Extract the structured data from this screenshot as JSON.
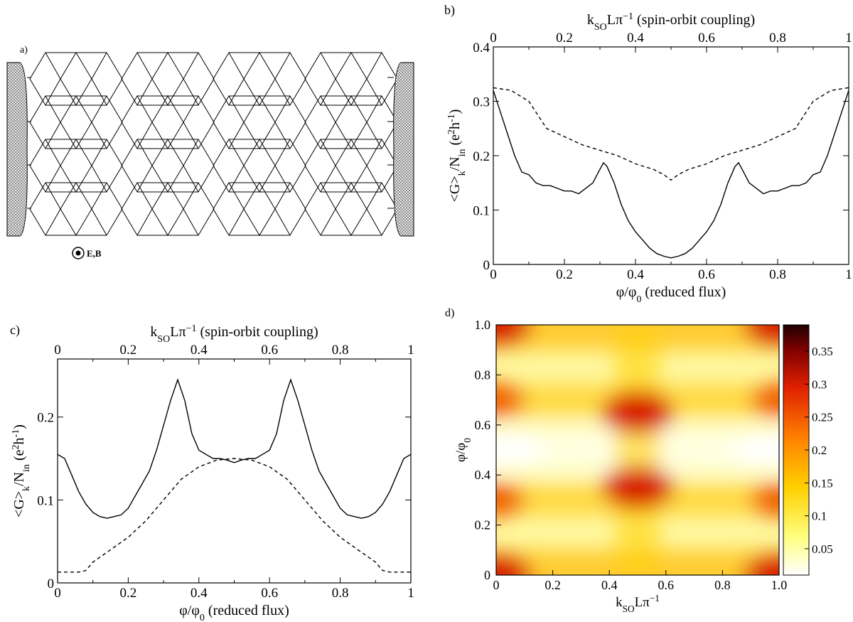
{
  "panel_labels": {
    "a": "a)",
    "b": "b)",
    "c": "c)",
    "d": "d)"
  },
  "panel_a": {
    "field_label": "E,B"
  },
  "chart_data": [
    {
      "panel": "b",
      "type": "line",
      "xlabel": "φ/φ",
      "xlabel_sub": "0",
      "xlabel_suffix": " (reduced flux)",
      "x2label": "k",
      "x2label_sub": "SO",
      "x2label_rest": "Lπ",
      "x2label_sup": "−1",
      "x2label_suffix": " (spin-orbit coupling)",
      "ylabel": "<G>k/Nin (e2h-1)",
      "xlim": [
        0,
        1
      ],
      "ylim": [
        0,
        0.4
      ],
      "xticks": [
        "0",
        "0.2",
        "0.4",
        "0.6",
        "0.8",
        "1"
      ],
      "yticks": [
        "0",
        "0.1",
        "0.2",
        "0.3",
        "0.4"
      ],
      "series": [
        {
          "style": "solid",
          "x": [
            0,
            0.02,
            0.04,
            0.06,
            0.08,
            0.1,
            0.12,
            0.14,
            0.16,
            0.18,
            0.2,
            0.22,
            0.24,
            0.26,
            0.28,
            0.3,
            0.31,
            0.32,
            0.34,
            0.36,
            0.38,
            0.4,
            0.42,
            0.44,
            0.46,
            0.48,
            0.5,
            0.52,
            0.54,
            0.56,
            0.58,
            0.6,
            0.62,
            0.64,
            0.66,
            0.68,
            0.69,
            0.7,
            0.72,
            0.74,
            0.76,
            0.78,
            0.8,
            0.82,
            0.84,
            0.86,
            0.88,
            0.9,
            0.92,
            0.94,
            0.96,
            0.98,
            1.0
          ],
          "y": [
            0.32,
            0.28,
            0.24,
            0.2,
            0.17,
            0.165,
            0.15,
            0.145,
            0.145,
            0.14,
            0.135,
            0.135,
            0.13,
            0.14,
            0.15,
            0.175,
            0.187,
            0.18,
            0.15,
            0.11,
            0.08,
            0.06,
            0.045,
            0.03,
            0.02,
            0.015,
            0.012,
            0.015,
            0.02,
            0.03,
            0.045,
            0.06,
            0.08,
            0.11,
            0.15,
            0.18,
            0.187,
            0.175,
            0.15,
            0.14,
            0.13,
            0.135,
            0.135,
            0.14,
            0.145,
            0.145,
            0.15,
            0.165,
            0.17,
            0.2,
            0.24,
            0.28,
            0.32
          ]
        },
        {
          "style": "dashed",
          "x": [
            0,
            0.05,
            0.1,
            0.15,
            0.2,
            0.25,
            0.3,
            0.35,
            0.4,
            0.45,
            0.48,
            0.5,
            0.52,
            0.55,
            0.6,
            0.65,
            0.7,
            0.75,
            0.8,
            0.85,
            0.9,
            0.95,
            1.0
          ],
          "y": [
            0.325,
            0.32,
            0.3,
            0.25,
            0.235,
            0.22,
            0.21,
            0.2,
            0.185,
            0.175,
            0.165,
            0.155,
            0.165,
            0.175,
            0.185,
            0.2,
            0.21,
            0.22,
            0.235,
            0.25,
            0.3,
            0.32,
            0.325
          ]
        }
      ]
    },
    {
      "panel": "c",
      "type": "line",
      "xlabel": "φ/φ",
      "xlabel_sub": "0",
      "xlabel_suffix": " (reduced flux)",
      "x2label": "k",
      "x2label_sub": "SO",
      "x2label_rest": "Lπ",
      "x2label_sup": "−1",
      "x2label_suffix": " (spin-orbit coupling)",
      "ylabel": "<G>k/Nin (e2h-1)",
      "xlim": [
        0,
        1
      ],
      "ylim": [
        0,
        0.27
      ],
      "xticks": [
        "0",
        "0.2",
        "0.4",
        "0.6",
        "0.8",
        "1"
      ],
      "yticks": [
        "0",
        "0.1",
        "0.2"
      ],
      "series": [
        {
          "style": "solid",
          "x": [
            0,
            0.02,
            0.04,
            0.06,
            0.08,
            0.1,
            0.12,
            0.14,
            0.16,
            0.18,
            0.2,
            0.22,
            0.24,
            0.26,
            0.28,
            0.3,
            0.32,
            0.34,
            0.36,
            0.38,
            0.4,
            0.42,
            0.44,
            0.46,
            0.48,
            0.5,
            0.52,
            0.54,
            0.56,
            0.58,
            0.6,
            0.62,
            0.64,
            0.66,
            0.68,
            0.7,
            0.72,
            0.74,
            0.76,
            0.78,
            0.8,
            0.82,
            0.84,
            0.86,
            0.88,
            0.9,
            0.92,
            0.94,
            0.96,
            0.98,
            1.0
          ],
          "y": [
            0.155,
            0.15,
            0.13,
            0.11,
            0.095,
            0.085,
            0.08,
            0.078,
            0.08,
            0.082,
            0.09,
            0.105,
            0.12,
            0.135,
            0.16,
            0.19,
            0.22,
            0.245,
            0.22,
            0.18,
            0.16,
            0.155,
            0.15,
            0.15,
            0.148,
            0.145,
            0.148,
            0.15,
            0.15,
            0.155,
            0.16,
            0.18,
            0.22,
            0.245,
            0.22,
            0.19,
            0.16,
            0.135,
            0.12,
            0.105,
            0.09,
            0.082,
            0.08,
            0.078,
            0.08,
            0.085,
            0.095,
            0.11,
            0.13,
            0.15,
            0.155
          ]
        },
        {
          "style": "dashed",
          "x": [
            0,
            0.06,
            0.08,
            0.1,
            0.15,
            0.2,
            0.25,
            0.3,
            0.35,
            0.4,
            0.45,
            0.5,
            0.55,
            0.6,
            0.65,
            0.7,
            0.75,
            0.8,
            0.85,
            0.9,
            0.92,
            0.94,
            1.0
          ],
          "y": [
            0.013,
            0.013,
            0.015,
            0.025,
            0.04,
            0.055,
            0.075,
            0.1,
            0.125,
            0.14,
            0.148,
            0.15,
            0.148,
            0.14,
            0.125,
            0.1,
            0.075,
            0.055,
            0.04,
            0.025,
            0.015,
            0.013,
            0.013
          ]
        }
      ]
    },
    {
      "panel": "d",
      "type": "heatmap",
      "xlabel": "k",
      "xlabel_sub": "SO",
      "xlabel_rest": "Lπ",
      "xlabel_sup": "−1",
      "ylabel": "φ/φ",
      "ylabel_sub": "0",
      "xlim": [
        0,
        1
      ],
      "ylim": [
        0,
        1
      ],
      "xticks": [
        "0",
        "0.2",
        "0.4",
        "0.6",
        "0.8",
        "1.0"
      ],
      "yticks": [
        "0",
        "0.2",
        "0.4",
        "0.6",
        "0.8",
        "1.0"
      ],
      "colorbar": {
        "ticks": [
          "0.05",
          "0.1",
          "0.15",
          "0.2",
          "0.25",
          "0.3",
          "0.35"
        ],
        "range": [
          0.01,
          0.39
        ]
      },
      "hotspots": [
        {
          "x": 0.5,
          "y": 0.35,
          "value": 0.3
        },
        {
          "x": 0.5,
          "y": 0.65,
          "value": 0.3
        },
        {
          "x": 0.0,
          "y": 0.0,
          "value": 0.3
        },
        {
          "x": 1.0,
          "y": 0.0,
          "value": 0.3
        },
        {
          "x": 0.0,
          "y": 1.0,
          "value": 0.3
        },
        {
          "x": 1.0,
          "y": 1.0,
          "value": 0.3
        },
        {
          "x": 0.0,
          "y": 0.3,
          "value": 0.22
        },
        {
          "x": 1.0,
          "y": 0.3,
          "value": 0.22
        },
        {
          "x": 0.0,
          "y": 0.7,
          "value": 0.22
        },
        {
          "x": 1.0,
          "y": 0.7,
          "value": 0.22
        }
      ],
      "colors": {
        "low": "#ffffff",
        "mid1": "#ffff40",
        "mid2": "#ff9900",
        "mid3": "#e02000",
        "high": "#200000"
      }
    }
  ]
}
